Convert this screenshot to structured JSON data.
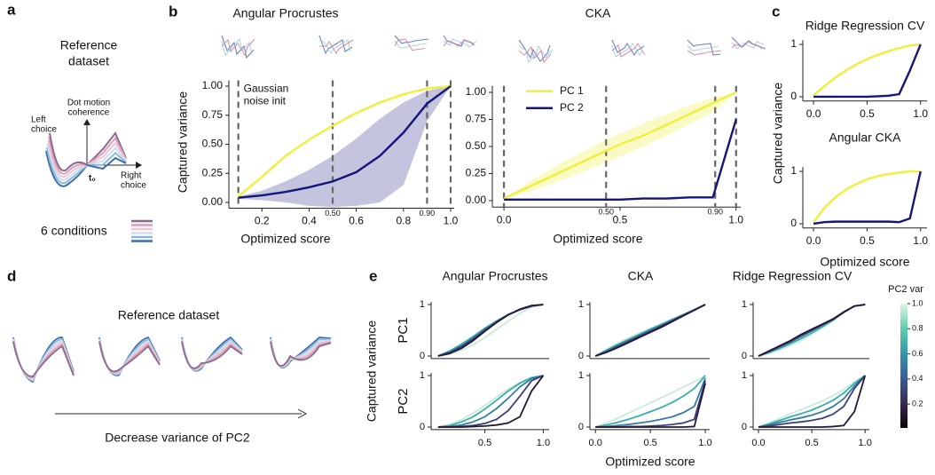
{
  "panels": [
    "a",
    "b",
    "c",
    "d",
    "e"
  ],
  "diagram_a": {
    "title": [
      "Reference",
      "dataset"
    ],
    "y_axis": [
      "Dot motion",
      "coherence"
    ],
    "left": [
      "Left",
      "choice"
    ],
    "right": [
      "Right",
      "choice"
    ],
    "origin": "t₀",
    "conditions": "6 conditions"
  },
  "diagram_d": {
    "title": "Reference dataset",
    "arrow_label": "Decrease variance of PC2"
  },
  "colorbar": {
    "label": "PC2 var",
    "lim": [
      0.01,
      1.0
    ],
    "ticks": [
      0.2,
      0.4,
      0.6,
      0.8,
      {
        "value": 1,
        "label": "1.0"
      }
    ],
    "colors": [
      "#0b0405",
      "#382a54",
      "#395d9c",
      "#3496a9",
      "#5fcdad",
      "#def5e5"
    ]
  },
  "chart_data": [
    {
      "type": "line",
      "title": "Angular Procrustes",
      "xlabel": "Optimized score",
      "ylabel": "Captured variance",
      "annotation": [
        "Gaussian",
        "noise init"
      ],
      "x": [
        0.1,
        0.2,
        0.3,
        0.4,
        0.5,
        0.6,
        0.7,
        0.8,
        0.9,
        1.0
      ],
      "series": [
        {
          "name": "PC 1",
          "color": "#f0ef3c",
          "values": [
            0.05,
            0.22,
            0.4,
            0.54,
            0.66,
            0.77,
            0.86,
            0.93,
            0.98,
            1.0
          ]
        },
        {
          "name": "PC 2",
          "color": "#15157a",
          "values": [
            0.04,
            0.06,
            0.09,
            0.13,
            0.18,
            0.26,
            0.4,
            0.6,
            0.85,
            1.0
          ],
          "lower": [
            0.03,
            0.02,
            0.0,
            -0.03,
            -0.04,
            -0.03,
            0.0,
            0.15,
            0.7,
            1.0
          ],
          "upper": [
            0.05,
            0.1,
            0.18,
            0.28,
            0.4,
            0.55,
            0.72,
            0.86,
            0.96,
            1.0
          ]
        }
      ],
      "markers": [
        {
          "x": 0.1
        },
        {
          "x": 0.5,
          "label": "0.50"
        },
        {
          "x": 0.9,
          "label": "0.90"
        },
        {
          "x": 1.0
        }
      ],
      "xlim": [
        0.06,
        1.015
      ],
      "ylim": [
        -0.05,
        1.05
      ],
      "xticks": [
        0.2,
        0.4,
        0.6,
        0.8,
        {
          "value": 1,
          "label": "1.0"
        }
      ],
      "yticks": [
        {
          "value": 0,
          "label": "0.00"
        },
        0.25,
        {
          "value": 0.5,
          "label": "0.50"
        },
        0.75,
        {
          "value": 1,
          "label": "1.00"
        }
      ]
    },
    {
      "type": "line",
      "title": "CKA",
      "xlabel": "Optimized score",
      "legend": "upper left",
      "x": [
        0,
        0.1,
        0.2,
        0.3,
        0.4,
        0.5,
        0.6,
        0.7,
        0.8,
        0.9,
        1.0
      ],
      "series": [
        {
          "name": "PC 1",
          "color": "#f0ef3c",
          "values": [
            0.02,
            0.12,
            0.22,
            0.32,
            0.42,
            0.52,
            0.6,
            0.7,
            0.8,
            0.9,
            1.0
          ],
          "lower": [
            0.02,
            0.08,
            0.15,
            0.23,
            0.32,
            0.41,
            0.5,
            0.6,
            0.71,
            0.82,
            1.0
          ],
          "upper": [
            0.02,
            0.16,
            0.29,
            0.41,
            0.52,
            0.62,
            0.71,
            0.8,
            0.88,
            0.95,
            1.0
          ]
        },
        {
          "name": "PC 2",
          "color": "#15157a",
          "values": [
            0.01,
            0.01,
            0.01,
            0.01,
            0.01,
            0.01,
            0.02,
            0.02,
            0.03,
            0.03,
            0.75
          ]
        }
      ],
      "markers": [
        {
          "x": 0.0
        },
        {
          "x": 0.44,
          "label": "0.50"
        },
        {
          "x": 0.91,
          "label": "0.90"
        },
        {
          "x": 1.0
        }
      ],
      "xlim": [
        -0.05,
        1.02
      ],
      "ylim": [
        -0.06,
        1.06
      ],
      "xticks": [
        {
          "value": 0,
          "label": "0.0"
        },
        0.5,
        {
          "value": 1,
          "label": "1.0"
        }
      ],
      "yticks": [
        {
          "value": 0,
          "label": "0.00"
        },
        0.25,
        {
          "value": 0.5,
          "label": "0.50"
        },
        0.75,
        {
          "value": 1,
          "label": "1.00"
        }
      ]
    },
    {
      "type": "line",
      "title": "Ridge Regression CV",
      "ylabel": "Captured variance",
      "x": [
        0,
        0.1,
        0.2,
        0.3,
        0.4,
        0.5,
        0.6,
        0.7,
        0.8,
        0.9,
        1.0
      ],
      "series": [
        {
          "color": "#f0ef3c",
          "values": [
            0.03,
            0.2,
            0.36,
            0.5,
            0.62,
            0.72,
            0.8,
            0.87,
            0.93,
            0.98,
            1.0
          ]
        },
        {
          "color": "#15157a",
          "values": [
            0,
            0,
            0,
            0,
            0,
            0,
            0.01,
            0.02,
            0.05,
            0.5,
            1.0
          ]
        }
      ],
      "xlim": [
        -0.1,
        1.06
      ],
      "ylim": [
        -0.08,
        1.08
      ],
      "xticks": [
        {
          "value": 0,
          "label": "0.0"
        },
        0.5,
        {
          "value": 1,
          "label": "1.0"
        }
      ],
      "yticks": [
        0,
        1
      ]
    },
    {
      "type": "line",
      "title": "Angular CKA",
      "xlabel": "Optimized score",
      "x": [
        0,
        0.1,
        0.2,
        0.3,
        0.4,
        0.5,
        0.6,
        0.7,
        0.8,
        0.9,
        1.0
      ],
      "series": [
        {
          "color": "#f0ef3c",
          "values": [
            0.03,
            0.3,
            0.5,
            0.65,
            0.76,
            0.85,
            0.91,
            0.95,
            0.98,
            1.0,
            1.0
          ]
        },
        {
          "color": "#15157a",
          "values": [
            0,
            0.03,
            0.04,
            0.04,
            0.04,
            0.04,
            0.04,
            0.04,
            0.03,
            0.1,
            1.0
          ]
        }
      ],
      "xlim": [
        -0.1,
        1.06
      ],
      "ylim": [
        -0.08,
        1.08
      ],
      "xticks": [
        {
          "value": 0,
          "label": "0.0"
        },
        0.5,
        {
          "value": 1,
          "label": "1.0"
        }
      ],
      "yticks": [
        0,
        1
      ]
    },
    {
      "type": "line",
      "title": "Angular Procrustes",
      "row_label": "PC1",
      "ylabel": "Captured variance",
      "x": [
        0.1,
        0.2,
        0.3,
        0.4,
        0.5,
        0.6,
        0.7,
        0.8,
        0.9,
        1.0
      ],
      "series": [
        {
          "color": "#c9ecd6",
          "values": [
            0.0,
            0.04,
            0.11,
            0.22,
            0.36,
            0.52,
            0.68,
            0.83,
            0.95,
            1.0
          ]
        },
        {
          "color": "#3aaeac",
          "values": [
            0.0,
            0.1,
            0.23,
            0.38,
            0.54,
            0.68,
            0.81,
            0.9,
            0.97,
            1.0
          ]
        },
        {
          "color": "#357ba2",
          "values": [
            0.0,
            0.08,
            0.2,
            0.35,
            0.52,
            0.67,
            0.8,
            0.9,
            0.97,
            1.0
          ]
        },
        {
          "color": "#3d3d7a",
          "values": [
            0.0,
            0.07,
            0.18,
            0.33,
            0.5,
            0.66,
            0.8,
            0.9,
            0.97,
            1.0
          ]
        },
        {
          "color": "#241836",
          "values": [
            0.0,
            0.05,
            0.15,
            0.3,
            0.48,
            0.65,
            0.8,
            0.91,
            0.98,
            1.0
          ]
        }
      ],
      "xlim": [
        0.04,
        1.05
      ],
      "ylim": [
        -0.05,
        1.05
      ],
      "yticks": [
        0,
        1
      ]
    },
    {
      "type": "line",
      "title": "CKA",
      "x": [
        0,
        0.1,
        0.2,
        0.3,
        0.4,
        0.5,
        0.6,
        0.7,
        0.8,
        0.9,
        1.0
      ],
      "series": [
        {
          "color": "#c9ecd6",
          "values": [
            0,
            0.13,
            0.25,
            0.35,
            0.45,
            0.54,
            0.63,
            0.72,
            0.81,
            0.9,
            1.0
          ]
        },
        {
          "color": "#3aaeac",
          "values": [
            0,
            0.11,
            0.22,
            0.32,
            0.42,
            0.52,
            0.61,
            0.71,
            0.8,
            0.9,
            1.0
          ]
        },
        {
          "color": "#357ba2",
          "values": [
            0,
            0.1,
            0.2,
            0.3,
            0.4,
            0.5,
            0.6,
            0.7,
            0.8,
            0.9,
            1.0
          ]
        },
        {
          "color": "#3d3d7a",
          "values": [
            0,
            0.08,
            0.18,
            0.28,
            0.38,
            0.48,
            0.58,
            0.68,
            0.79,
            0.89,
            1.0
          ]
        },
        {
          "color": "#241836",
          "values": [
            0,
            0.07,
            0.16,
            0.26,
            0.36,
            0.46,
            0.56,
            0.67,
            0.78,
            0.89,
            1.0
          ]
        }
      ],
      "xlim": [
        -0.05,
        1.04
      ],
      "ylim": [
        -0.05,
        1.05
      ],
      "yticks": [
        0,
        1
      ]
    },
    {
      "type": "line",
      "title": "Ridge Regression CV",
      "x": [
        0,
        0.1,
        0.2,
        0.3,
        0.4,
        0.5,
        0.6,
        0.7,
        0.8,
        0.9,
        1.0
      ],
      "series": [
        {
          "color": "#c9ecd6",
          "values": [
            0,
            0.05,
            0.12,
            0.2,
            0.3,
            0.42,
            0.55,
            0.68,
            0.85,
            0.97,
            1.0
          ]
        },
        {
          "color": "#3aaeac",
          "values": [
            0,
            0.07,
            0.15,
            0.24,
            0.34,
            0.45,
            0.57,
            0.7,
            0.85,
            0.97,
            1.0
          ]
        },
        {
          "color": "#357ba2",
          "values": [
            0,
            0.08,
            0.17,
            0.27,
            0.38,
            0.49,
            0.6,
            0.72,
            0.86,
            0.97,
            1.0
          ]
        },
        {
          "color": "#3d3d7a",
          "values": [
            0,
            0.09,
            0.19,
            0.29,
            0.4,
            0.5,
            0.61,
            0.71,
            0.85,
            0.97,
            1.0
          ]
        },
        {
          "color": "#241836",
          "values": [
            0,
            0.1,
            0.2,
            0.3,
            0.42,
            0.52,
            0.62,
            0.72,
            0.85,
            0.97,
            1.0
          ]
        }
      ],
      "xlim": [
        -0.05,
        1.04
      ],
      "ylim": [
        -0.05,
        1.05
      ],
      "yticks": [
        0,
        1
      ]
    },
    {
      "type": "line",
      "row_label": "PC2",
      "x": [
        0.1,
        0.2,
        0.3,
        0.4,
        0.5,
        0.6,
        0.7,
        0.8,
        0.9,
        1.0
      ],
      "series": [
        {
          "color": "#c9ecd6",
          "values": [
            0,
            0.05,
            0.14,
            0.27,
            0.42,
            0.58,
            0.74,
            0.87,
            0.97,
            1.0
          ]
        },
        {
          "color": "#3aaeac",
          "values": [
            0,
            0.03,
            0.1,
            0.2,
            0.35,
            0.52,
            0.7,
            0.85,
            0.96,
            1.0
          ]
        },
        {
          "color": "#357ba2",
          "values": [
            0,
            0.01,
            0.04,
            0.1,
            0.2,
            0.36,
            0.56,
            0.78,
            0.94,
            1.0
          ]
        },
        {
          "color": "#3d3d7a",
          "values": [
            0,
            0,
            0.01,
            0.03,
            0.07,
            0.15,
            0.32,
            0.6,
            0.9,
            1.0
          ]
        },
        {
          "color": "#241836",
          "values": [
            0,
            0,
            0,
            0.01,
            0.02,
            0.04,
            0.08,
            0.2,
            0.7,
            1.0
          ]
        }
      ],
      "xlim": [
        0.04,
        1.05
      ],
      "ylim": [
        -0.05,
        1.05
      ],
      "xticks": [
        0.5,
        {
          "value": 1,
          "label": "1.0"
        }
      ],
      "yticks": [
        0,
        1
      ]
    },
    {
      "type": "line",
      "xlabel": "Optimized score",
      "x": [
        0,
        0.1,
        0.2,
        0.3,
        0.4,
        0.5,
        0.6,
        0.7,
        0.8,
        0.9,
        1.0
      ],
      "series": [
        {
          "color": "#c9ecd6",
          "values": [
            0,
            0.08,
            0.17,
            0.27,
            0.37,
            0.47,
            0.57,
            0.67,
            0.78,
            0.88,
            1.0
          ]
        },
        {
          "color": "#3aaeac",
          "values": [
            0,
            0.04,
            0.09,
            0.15,
            0.22,
            0.3,
            0.38,
            0.48,
            0.6,
            0.75,
            1.0
          ]
        },
        {
          "color": "#357ba2",
          "values": [
            0,
            0.01,
            0.03,
            0.05,
            0.08,
            0.11,
            0.15,
            0.2,
            0.28,
            0.4,
            0.95
          ]
        },
        {
          "color": "#3d3d7a",
          "values": [
            0,
            0,
            0,
            0.01,
            0.01,
            0.02,
            0.03,
            0.05,
            0.08,
            0.15,
            0.9
          ]
        },
        {
          "color": "#241836",
          "values": [
            0,
            0,
            0,
            0,
            0,
            0,
            0,
            0,
            0,
            0.01,
            0.85
          ]
        }
      ],
      "xlim": [
        -0.05,
        1.04
      ],
      "ylim": [
        -0.05,
        1.05
      ],
      "xticks": [
        {
          "value": 0,
          "label": "0.0"
        },
        0.5,
        {
          "value": 1,
          "label": "1.0"
        }
      ],
      "yticks": [
        0,
        1
      ]
    },
    {
      "type": "line",
      "x": [
        0,
        0.1,
        0.2,
        0.3,
        0.4,
        0.5,
        0.6,
        0.7,
        0.8,
        0.9,
        1.0
      ],
      "series": [
        {
          "color": "#c9ecd6",
          "values": [
            0,
            0.08,
            0.17,
            0.26,
            0.34,
            0.42,
            0.51,
            0.61,
            0.73,
            0.88,
            1.0
          ]
        },
        {
          "color": "#3aaeac",
          "values": [
            0,
            0.06,
            0.13,
            0.2,
            0.26,
            0.33,
            0.42,
            0.52,
            0.66,
            0.85,
            1.0
          ]
        },
        {
          "color": "#357ba2",
          "values": [
            0,
            0.04,
            0.09,
            0.14,
            0.18,
            0.23,
            0.3,
            0.4,
            0.55,
            0.8,
            1.0
          ]
        },
        {
          "color": "#3d3d7a",
          "values": [
            0,
            0.02,
            0.05,
            0.08,
            0.1,
            0.13,
            0.17,
            0.25,
            0.4,
            0.75,
            1.0
          ]
        },
        {
          "color": "#241836",
          "values": [
            0,
            0,
            0,
            0,
            0,
            0,
            0,
            0.01,
            0.03,
            0.3,
            1.0
          ]
        }
      ],
      "xlim": [
        -0.05,
        1.04
      ],
      "ylim": [
        -0.05,
        1.05
      ],
      "xticks": [
        {
          "value": 0,
          "label": "0.0"
        },
        0.5,
        {
          "value": 1,
          "label": "1.0"
        }
      ],
      "yticks": [
        0,
        1
      ]
    }
  ]
}
